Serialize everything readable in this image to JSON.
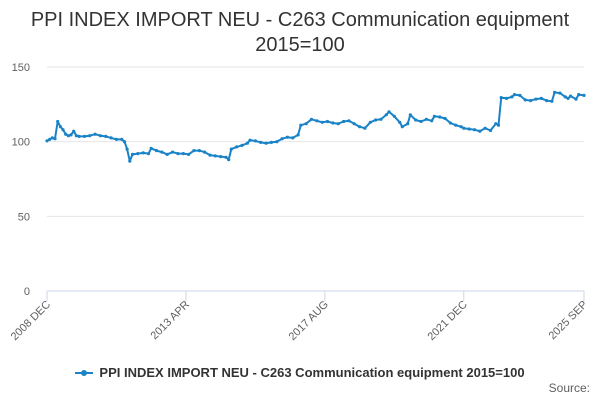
{
  "chart_data": {
    "type": "line",
    "title_lines": [
      "PPI INDEX IMPORT NEU - C263 Communication equipment",
      "2015=100"
    ],
    "xlabel": "",
    "ylabel": "",
    "ylim": [
      0,
      150
    ],
    "y_ticks": [
      0,
      50,
      100,
      150
    ],
    "x_tick_labels": [
      {
        "label": "2008 DEC",
        "date": "2008-12"
      },
      {
        "label": "2013 APR",
        "date": "2013-04"
      },
      {
        "label": "2017 AUG",
        "date": "2017-08"
      },
      {
        "label": "2021 DEC",
        "date": "2021-12"
      },
      {
        "label": "2025 SEP",
        "date": "2025-09"
      }
    ],
    "xlim": [
      "2008-12",
      "2025-09"
    ],
    "grid": true,
    "legend_placement": "bottom",
    "series": [
      {
        "name": "PPI INDEX IMPORT NEU - C263 Communication equipment 2015=100",
        "color": "#1a83c7",
        "points": [
          [
            "2008-12",
            100.5
          ],
          [
            "2009-01",
            101.5
          ],
          [
            "2009-02",
            102.5
          ],
          [
            "2009-03",
            102.0
          ],
          [
            "2009-04",
            113.5
          ],
          [
            "2009-05",
            110.0
          ],
          [
            "2009-06",
            108.0
          ],
          [
            "2009-07",
            105.0
          ],
          [
            "2009-08",
            104.0
          ],
          [
            "2009-09",
            104.5
          ],
          [
            "2009-10",
            107.0
          ],
          [
            "2009-11",
            104.0
          ],
          [
            "2009-12",
            103.5
          ],
          [
            "2010-02",
            103.5
          ],
          [
            "2010-04",
            104.0
          ],
          [
            "2010-06",
            105.0
          ],
          [
            "2010-08",
            104.0
          ],
          [
            "2010-10",
            103.5
          ],
          [
            "2010-12",
            102.5
          ],
          [
            "2011-02",
            101.5
          ],
          [
            "2011-04",
            101.5
          ],
          [
            "2011-05",
            100.0
          ],
          [
            "2011-06",
            95.0
          ],
          [
            "2011-07",
            87.0
          ],
          [
            "2011-08",
            91.5
          ],
          [
            "2011-10",
            92.0
          ],
          [
            "2011-12",
            92.5
          ],
          [
            "2012-02",
            92.0
          ],
          [
            "2012-03",
            95.5
          ],
          [
            "2012-05",
            94.0
          ],
          [
            "2012-07",
            93.0
          ],
          [
            "2012-09",
            91.5
          ],
          [
            "2012-11",
            93.0
          ],
          [
            "2013-01",
            92.0
          ],
          [
            "2013-03",
            92.0
          ],
          [
            "2013-05",
            91.5
          ],
          [
            "2013-07",
            94.0
          ],
          [
            "2013-09",
            94.0
          ],
          [
            "2013-11",
            93.0
          ],
          [
            "2014-01",
            91.0
          ],
          [
            "2014-03",
            90.5
          ],
          [
            "2014-05",
            90.0
          ],
          [
            "2014-07",
            89.5
          ],
          [
            "2014-08",
            88.0
          ],
          [
            "2014-09",
            95.0
          ],
          [
            "2014-11",
            96.5
          ],
          [
            "2015-01",
            97.5
          ],
          [
            "2015-03",
            99.0
          ],
          [
            "2015-04",
            101.0
          ],
          [
            "2015-06",
            100.5
          ],
          [
            "2015-08",
            99.5
          ],
          [
            "2015-10",
            99.0
          ],
          [
            "2015-12",
            99.5
          ],
          [
            "2016-02",
            100.0
          ],
          [
            "2016-04",
            102.0
          ],
          [
            "2016-06",
            103.0
          ],
          [
            "2016-08",
            102.5
          ],
          [
            "2016-10",
            104.5
          ],
          [
            "2016-11",
            111.0
          ],
          [
            "2017-01",
            112.0
          ],
          [
            "2017-03",
            115.0
          ],
          [
            "2017-05",
            114.0
          ],
          [
            "2017-07",
            113.0
          ],
          [
            "2017-09",
            113.5
          ],
          [
            "2017-11",
            112.5
          ],
          [
            "2018-01",
            112.0
          ],
          [
            "2018-03",
            113.5
          ],
          [
            "2018-05",
            114.0
          ],
          [
            "2018-07",
            112.0
          ],
          [
            "2018-09",
            110.0
          ],
          [
            "2018-11",
            109.0
          ],
          [
            "2019-01",
            113.0
          ],
          [
            "2019-03",
            114.5
          ],
          [
            "2019-05",
            115.0
          ],
          [
            "2019-07",
            118.0
          ],
          [
            "2019-08",
            120.0
          ],
          [
            "2019-10",
            117.0
          ],
          [
            "2019-12",
            113.0
          ],
          [
            "2020-01",
            110.0
          ],
          [
            "2020-03",
            112.0
          ],
          [
            "2020-04",
            118.0
          ],
          [
            "2020-06",
            114.5
          ],
          [
            "2020-08",
            113.5
          ],
          [
            "2020-10",
            115.0
          ],
          [
            "2020-12",
            114.0
          ],
          [
            "2021-01",
            117.0
          ],
          [
            "2021-03",
            116.5
          ],
          [
            "2021-05",
            115.5
          ],
          [
            "2021-07",
            112.5
          ],
          [
            "2021-09",
            111.0
          ],
          [
            "2021-11",
            110.0
          ],
          [
            "2021-12",
            109.0
          ],
          [
            "2022-02",
            108.5
          ],
          [
            "2022-04",
            108.0
          ],
          [
            "2022-06",
            107.0
          ],
          [
            "2022-08",
            109.0
          ],
          [
            "2022-10",
            107.5
          ],
          [
            "2022-12",
            112.0
          ],
          [
            "2023-01",
            111.0
          ],
          [
            "2023-02",
            129.5
          ],
          [
            "2023-04",
            129.0
          ],
          [
            "2023-06",
            130.0
          ],
          [
            "2023-07",
            131.5
          ],
          [
            "2023-09",
            131.0
          ],
          [
            "2023-11",
            128.0
          ],
          [
            "2024-01",
            127.5
          ],
          [
            "2024-03",
            128.5
          ],
          [
            "2024-05",
            129.0
          ],
          [
            "2024-07",
            127.5
          ],
          [
            "2024-09",
            127.0
          ],
          [
            "2024-10",
            133.0
          ],
          [
            "2024-12",
            132.5
          ],
          [
            "2025-02",
            130.0
          ],
          [
            "2025-03",
            129.0
          ],
          [
            "2025-04",
            130.5
          ],
          [
            "2025-06",
            128.5
          ],
          [
            "2025-07",
            131.5
          ],
          [
            "2025-09",
            131.0
          ]
        ]
      }
    ],
    "source_label": "Source:"
  }
}
